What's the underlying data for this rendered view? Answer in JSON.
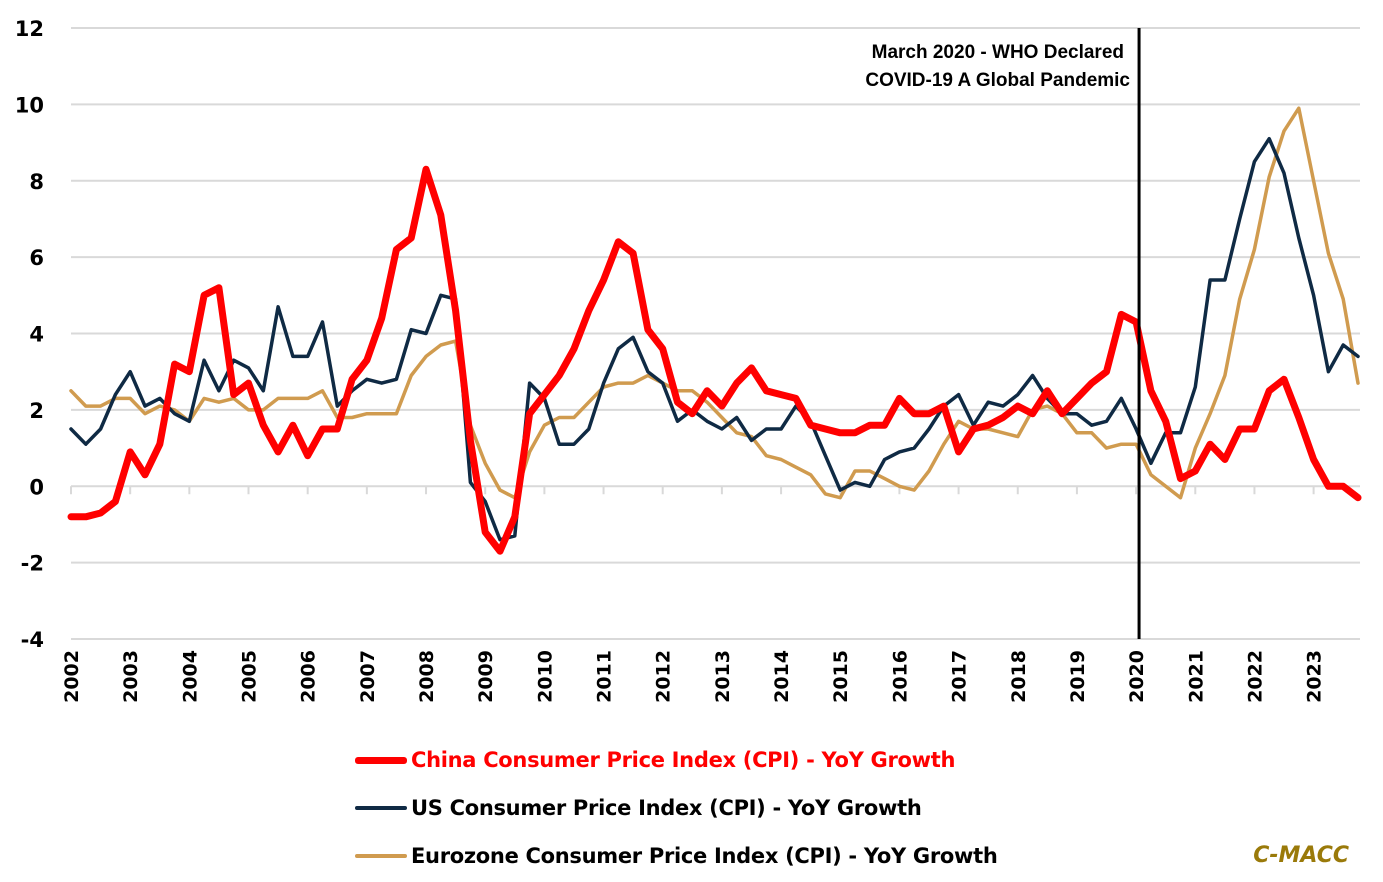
{
  "chart_data": {
    "type": "line",
    "title": "",
    "xlabel": "",
    "ylabel": "",
    "ylim": [
      -4,
      12
    ],
    "yticks": [
      12,
      10,
      8,
      6,
      4,
      2,
      0,
      -2,
      -4
    ],
    "grid": true,
    "legend_position": "bottom",
    "x_start": "2002 Q1",
    "x_frequency": "quarterly",
    "x_tick_labels": [
      "2002",
      "2003",
      "2004",
      "2005",
      "2006",
      "2007",
      "2008",
      "2009",
      "2010",
      "2011",
      "2012",
      "2013",
      "2014",
      "2015",
      "2016",
      "2017",
      "2018",
      "2019",
      "2020",
      "2021",
      "2022",
      "2023"
    ],
    "annotation": {
      "lines": [
        "March 2020 - WHO Declared",
        "COVID-19 A Global Pandemic"
      ],
      "x_position": "2020 Q1"
    },
    "series": [
      {
        "name": "China Consumer Price Index (CPI) - YoY Growth",
        "color": "#ff0000",
        "values": [
          -0.8,
          -0.8,
          -0.7,
          -0.4,
          0.9,
          0.3,
          1.1,
          3.2,
          3.0,
          5.0,
          5.2,
          2.4,
          2.7,
          1.6,
          0.9,
          1.6,
          0.8,
          1.5,
          1.5,
          2.8,
          3.3,
          4.4,
          6.2,
          6.5,
          8.3,
          7.1,
          4.6,
          1.2,
          -1.2,
          -1.7,
          -0.8,
          1.9,
          2.4,
          2.9,
          3.6,
          4.6,
          5.4,
          6.4,
          6.1,
          4.1,
          3.6,
          2.2,
          1.9,
          2.5,
          2.1,
          2.7,
          3.1,
          2.5,
          2.4,
          2.3,
          1.6,
          1.5,
          1.4,
          1.4,
          1.6,
          1.6,
          2.3,
          1.9,
          1.9,
          2.1,
          0.9,
          1.5,
          1.6,
          1.8,
          2.1,
          1.9,
          2.5,
          1.9,
          2.3,
          2.7,
          3.0,
          4.5,
          4.3,
          2.5,
          1.7,
          0.2,
          0.4,
          1.1,
          0.7,
          1.5,
          1.5,
          2.5,
          2.8,
          1.8,
          0.7,
          0.0,
          0.0,
          -0.3
        ]
      },
      {
        "name": "US Consumer Price Index (CPI) - YoY Growth",
        "color": "#0f2a44",
        "values": [
          1.5,
          1.1,
          1.5,
          2.4,
          3.0,
          2.1,
          2.3,
          1.9,
          1.7,
          3.3,
          2.5,
          3.3,
          3.1,
          2.5,
          4.7,
          3.4,
          3.4,
          4.3,
          2.1,
          2.5,
          2.8,
          2.7,
          2.8,
          4.1,
          4.0,
          5.0,
          4.9,
          0.1,
          -0.4,
          -1.4,
          -1.3,
          2.7,
          2.3,
          1.1,
          1.1,
          1.5,
          2.7,
          3.6,
          3.9,
          3.0,
          2.7,
          1.7,
          2.0,
          1.7,
          1.5,
          1.8,
          1.2,
          1.5,
          1.5,
          2.1,
          1.7,
          0.8,
          -0.1,
          0.1,
          0.0,
          0.7,
          0.9,
          1.0,
          1.5,
          2.1,
          2.4,
          1.6,
          2.2,
          2.1,
          2.4,
          2.9,
          2.3,
          1.9,
          1.9,
          1.6,
          1.7,
          2.3,
          1.5,
          0.6,
          1.4,
          1.4,
          2.6,
          5.4,
          5.4,
          7.0,
          8.5,
          9.1,
          8.2,
          6.5,
          5.0,
          3.0,
          3.7,
          3.4
        ]
      },
      {
        "name": "Eurozone Consumer Price Index (CPI) - YoY Growth",
        "color": "#d09b4f",
        "values": [
          2.5,
          2.1,
          2.1,
          2.3,
          2.3,
          1.9,
          2.1,
          2.0,
          1.7,
          2.3,
          2.2,
          2.3,
          2.0,
          2.0,
          2.3,
          2.3,
          2.3,
          2.5,
          1.8,
          1.8,
          1.9,
          1.9,
          1.9,
          2.9,
          3.4,
          3.7,
          3.8,
          1.6,
          0.6,
          -0.1,
          -0.3,
          0.9,
          1.6,
          1.8,
          1.8,
          2.2,
          2.6,
          2.7,
          2.7,
          2.9,
          2.7,
          2.5,
          2.5,
          2.2,
          1.8,
          1.4,
          1.3,
          0.8,
          0.7,
          0.5,
          0.3,
          -0.2,
          -0.3,
          0.4,
          0.4,
          0.2,
          0.0,
          -0.1,
          0.4,
          1.1,
          1.7,
          1.5,
          1.5,
          1.4,
          1.3,
          2.0,
          2.1,
          1.9,
          1.4,
          1.4,
          1.0,
          1.1,
          1.1,
          0.3,
          0.0,
          -0.3,
          1.0,
          1.9,
          2.9,
          4.9,
          6.2,
          8.1,
          9.3,
          9.9,
          8.0,
          6.1,
          4.9,
          2.7
        ]
      }
    ]
  },
  "legend": {
    "items": [
      {
        "label": "China Consumer Price Index (CPI) - YoY Growth",
        "color": "#ff0000",
        "text_color": "#ff0000"
      },
      {
        "label": "US Consumer Price Index (CPI) - YoY Growth",
        "color": "#0f2a44",
        "text_color": "#000000"
      },
      {
        "label": "Eurozone Consumer Price Index (CPI) - YoY Growth",
        "color": "#d09b4f",
        "text_color": "#000000"
      }
    ]
  },
  "brand": {
    "label": "C-MACC",
    "color": "#9a7a0a"
  }
}
